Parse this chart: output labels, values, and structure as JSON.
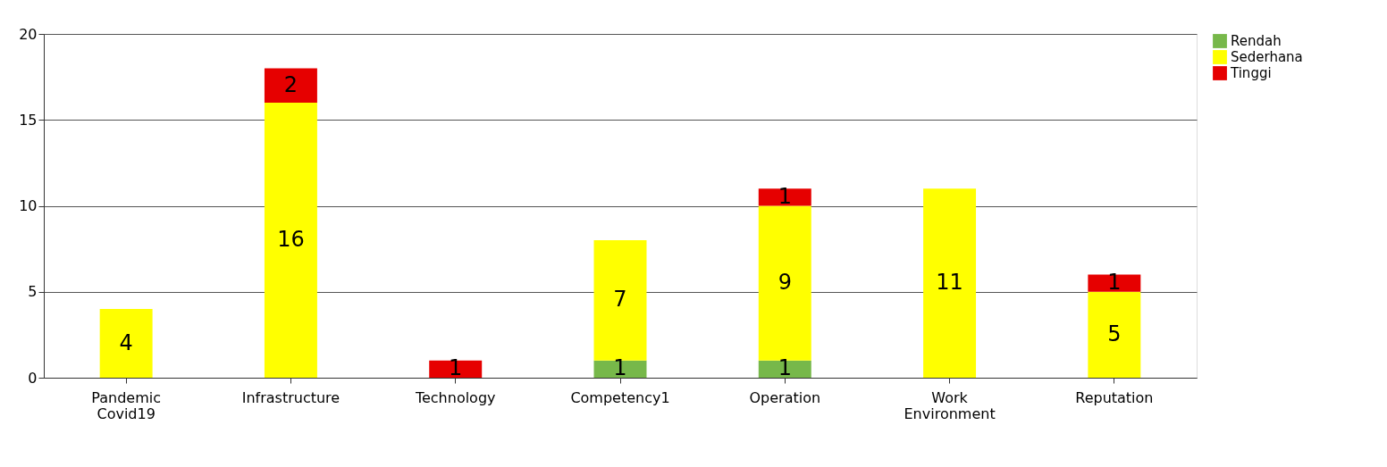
{
  "chart_data": {
    "type": "bar",
    "stacked": true,
    "categories": [
      "Pandemic Covid19",
      "Infrastructure",
      "Technology",
      "Competency1",
      "Operation",
      "Work Environment",
      "Reputation"
    ],
    "series": [
      {
        "name": "Rendah",
        "color": "#77b84a",
        "values": [
          null,
          null,
          null,
          1,
          1,
          null,
          null
        ]
      },
      {
        "name": "Sederhana",
        "color": "#ffff00",
        "values": [
          4,
          16,
          null,
          7,
          9,
          11,
          5
        ]
      },
      {
        "name": "Tinggi",
        "color": "#e60000",
        "values": [
          null,
          2,
          1,
          null,
          1,
          null,
          1
        ]
      }
    ],
    "ylim": [
      0,
      20
    ],
    "yticks": [
      0,
      5,
      10,
      15,
      20
    ],
    "grid": "y",
    "legend": "right",
    "data_labels": true
  }
}
